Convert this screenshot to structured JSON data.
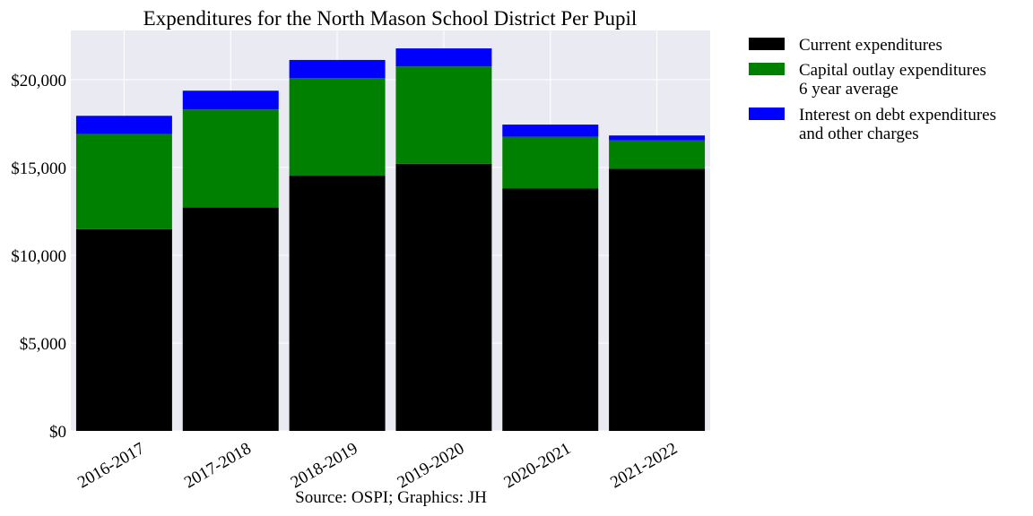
{
  "chart_data": {
    "type": "bar",
    "stacked": true,
    "title": "Expenditures for the North Mason School District Per Pupil",
    "caption": "Source: OSPI; Graphics: JH",
    "categories": [
      "2016-2017",
      "2017-2018",
      "2018-2019",
      "2019-2020",
      "2020-2021",
      "2021-2022"
    ],
    "series": [
      {
        "name": "Current expenditures",
        "color": "#000000",
        "values": [
          11480,
          12720,
          14530,
          15210,
          13800,
          14930
        ]
      },
      {
        "name": "Capital outlay expenditures 6 year average",
        "color": "#008000",
        "values": [
          5420,
          5580,
          5550,
          5540,
          2950,
          1610
        ]
      },
      {
        "name": "Interest on debt expenditures and other charges",
        "color": "#0000ff",
        "values": [
          1040,
          1070,
          1040,
          1030,
          690,
          280
        ]
      }
    ],
    "legend_lines": [
      [
        "Current expenditures"
      ],
      [
        "Capital outlay expenditures",
        "6 year average"
      ],
      [
        "Interest on debt expenditures",
        "and other charges"
      ]
    ],
    "ylim": [
      0,
      22800
    ],
    "yticks": [
      0,
      5000,
      10000,
      15000,
      20000
    ],
    "ytick_labels": [
      "$0",
      "$5,000",
      "$10,000",
      "$15,000",
      "$20,000"
    ],
    "xlabel": "",
    "ylabel": "",
    "grid": true,
    "legend_position": "outside-right-top"
  }
}
